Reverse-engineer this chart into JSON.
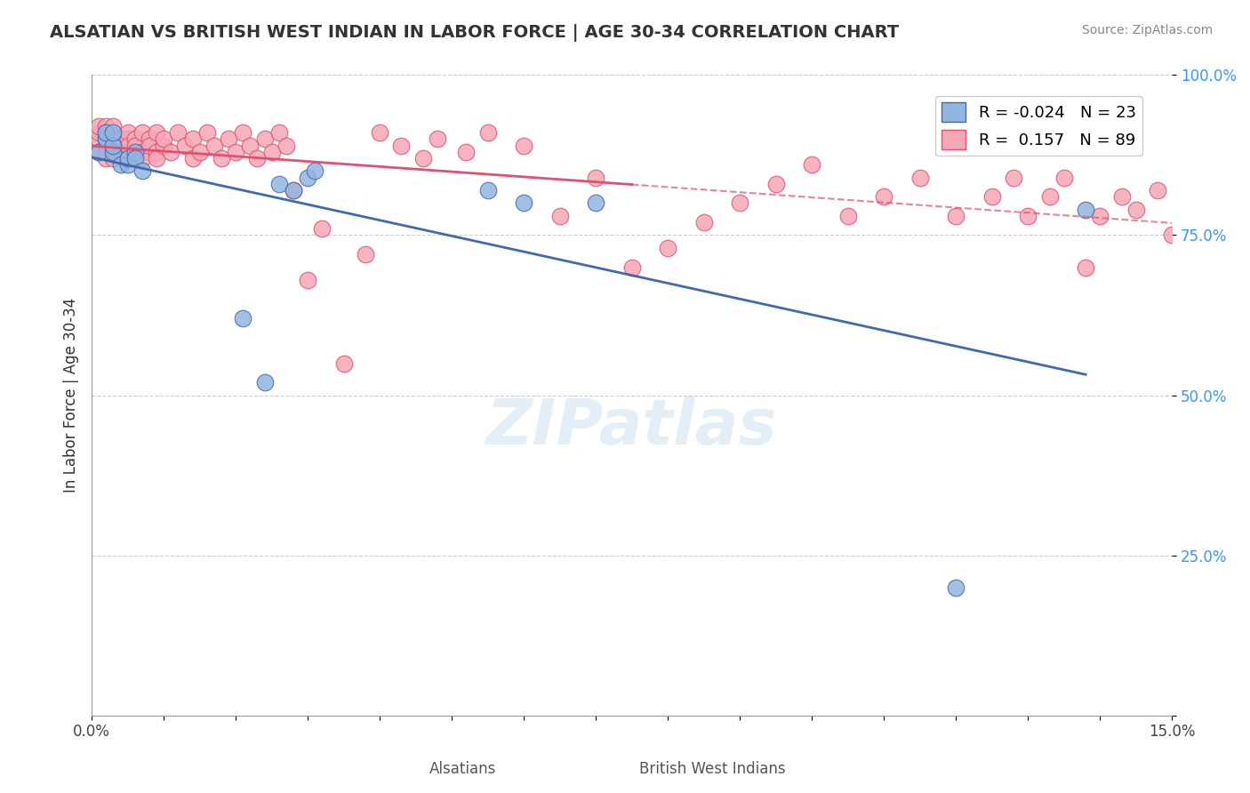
{
  "title": "ALSATIAN VS BRITISH WEST INDIAN IN LABOR FORCE | AGE 30-34 CORRELATION CHART",
  "source": "Source: ZipAtlas.com",
  "xlabel_bottom": "",
  "ylabel": "In Labor Force | Age 30-34",
  "xmin": 0.0,
  "xmax": 0.15,
  "ymin": 0.0,
  "ymax": 1.0,
  "yticks": [
    0.0,
    0.25,
    0.5,
    0.75,
    1.0
  ],
  "ytick_labels": [
    "",
    "25.0%",
    "50.0%",
    "75.0%",
    "100.0%"
  ],
  "xtick_labels": [
    "0.0%",
    "",
    "",
    "",
    "",
    "",
    "",
    "",
    "",
    "",
    "",
    "",
    "",
    "",
    "",
    "15.0%"
  ],
  "blue_color": "#92b4e0",
  "pink_color": "#f4a7b5",
  "blue_line_color": "#4169b0",
  "pink_line_color": "#e05070",
  "legend_R_blue": "-0.024",
  "legend_N_blue": "23",
  "legend_R_pink": "0.157",
  "legend_N_pink": "89",
  "blue_scatter_x": [
    0.001,
    0.002,
    0.002,
    0.003,
    0.003,
    0.003,
    0.004,
    0.005,
    0.005,
    0.006,
    0.006,
    0.007,
    0.021,
    0.024,
    0.026,
    0.028,
    0.03,
    0.031,
    0.055,
    0.06,
    0.07,
    0.12,
    0.138
  ],
  "blue_scatter_y": [
    0.88,
    0.9,
    0.91,
    0.88,
    0.89,
    0.91,
    0.86,
    0.86,
    0.87,
    0.88,
    0.87,
    0.85,
    0.62,
    0.52,
    0.83,
    0.82,
    0.84,
    0.85,
    0.82,
    0.8,
    0.8,
    0.2,
    0.79
  ],
  "pink_scatter_x": [
    0.001,
    0.001,
    0.001,
    0.001,
    0.002,
    0.002,
    0.002,
    0.002,
    0.002,
    0.002,
    0.003,
    0.003,
    0.003,
    0.003,
    0.003,
    0.003,
    0.004,
    0.004,
    0.004,
    0.005,
    0.005,
    0.005,
    0.005,
    0.006,
    0.006,
    0.006,
    0.007,
    0.007,
    0.007,
    0.008,
    0.008,
    0.009,
    0.009,
    0.009,
    0.01,
    0.01,
    0.011,
    0.012,
    0.013,
    0.014,
    0.014,
    0.015,
    0.016,
    0.017,
    0.018,
    0.019,
    0.02,
    0.021,
    0.022,
    0.023,
    0.024,
    0.025,
    0.026,
    0.027,
    0.028,
    0.03,
    0.032,
    0.035,
    0.038,
    0.04,
    0.043,
    0.046,
    0.048,
    0.052,
    0.055,
    0.06,
    0.065,
    0.07,
    0.075,
    0.08,
    0.085,
    0.09,
    0.095,
    0.1,
    0.105,
    0.11,
    0.115,
    0.12,
    0.125,
    0.128,
    0.13,
    0.133,
    0.135,
    0.138,
    0.14,
    0.143,
    0.145,
    0.148,
    0.15
  ],
  "pink_scatter_y": [
    0.9,
    0.91,
    0.92,
    0.88,
    0.89,
    0.87,
    0.9,
    0.92,
    0.88,
    0.91,
    0.89,
    0.9,
    0.91,
    0.88,
    0.87,
    0.92,
    0.89,
    0.9,
    0.88,
    0.9,
    0.91,
    0.87,
    0.89,
    0.88,
    0.9,
    0.89,
    0.91,
    0.88,
    0.87,
    0.9,
    0.89,
    0.88,
    0.91,
    0.87,
    0.89,
    0.9,
    0.88,
    0.91,
    0.89,
    0.87,
    0.9,
    0.88,
    0.91,
    0.89,
    0.87,
    0.9,
    0.88,
    0.91,
    0.89,
    0.87,
    0.9,
    0.88,
    0.91,
    0.89,
    0.82,
    0.68,
    0.76,
    0.55,
    0.72,
    0.91,
    0.89,
    0.87,
    0.9,
    0.88,
    0.91,
    0.89,
    0.78,
    0.84,
    0.7,
    0.73,
    0.77,
    0.8,
    0.83,
    0.86,
    0.78,
    0.81,
    0.84,
    0.78,
    0.81,
    0.84,
    0.78,
    0.81,
    0.84,
    0.7,
    0.78,
    0.81,
    0.79,
    0.82,
    0.75
  ],
  "watermark": "ZIPatlas",
  "background_color": "#ffffff",
  "grid_color": "#cccccc"
}
